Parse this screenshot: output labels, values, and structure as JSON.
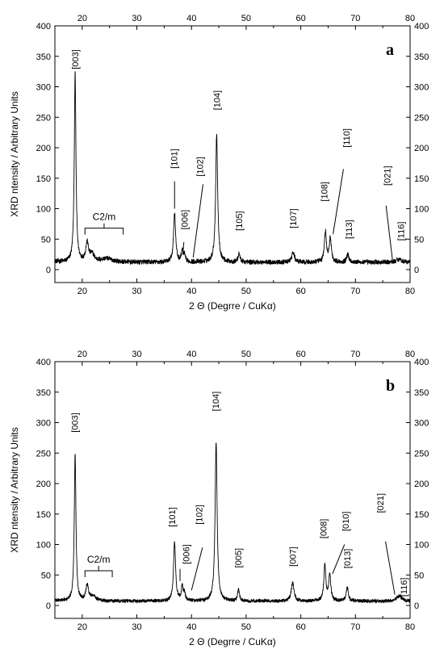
{
  "chart_data": [
    {
      "type": "line",
      "panel_label": "a",
      "xlabel": "2 Θ (Degrre / CuKα)",
      "ylabel": "XRD ntensity / Arbitrary Units",
      "xlim": [
        15,
        80
      ],
      "ylim": [
        -20,
        400
      ],
      "x_ticks": [
        20,
        30,
        40,
        50,
        60,
        70,
        80
      ],
      "y_ticks": [
        0,
        50,
        100,
        150,
        200,
        250,
        300,
        350,
        400
      ],
      "baseline": 12,
      "noise": 4,
      "peaks": [
        {
          "x": 18.7,
          "y": 310,
          "w": 0.18
        },
        {
          "x": 20.9,
          "y": 30,
          "w": 0.3
        },
        {
          "x": 21.8,
          "y": 12,
          "w": 0.5
        },
        {
          "x": 24.5,
          "y": 6,
          "w": 1.2
        },
        {
          "x": 36.9,
          "y": 82,
          "w": 0.22
        },
        {
          "x": 38.3,
          "y": 18,
          "w": 0.2
        },
        {
          "x": 38.7,
          "y": 10,
          "w": 0.2
        },
        {
          "x": 44.6,
          "y": 210,
          "w": 0.22
        },
        {
          "x": 48.7,
          "y": 14,
          "w": 0.22
        },
        {
          "x": 58.6,
          "y": 16,
          "w": 0.3
        },
        {
          "x": 64.5,
          "y": 50,
          "w": 0.22
        },
        {
          "x": 65.4,
          "y": 40,
          "w": 0.22
        },
        {
          "x": 68.6,
          "y": 13,
          "w": 0.25
        },
        {
          "x": 78.0,
          "y": 5,
          "w": 0.6
        }
      ],
      "annotations": [
        {
          "text": "[003]",
          "x": 18.7,
          "y": 345
        },
        {
          "text": "[101]",
          "x": 36.8,
          "y": 182
        },
        {
          "text": "[006]",
          "x": 38.7,
          "y": 82
        },
        {
          "text": "[102]",
          "x": 41.5,
          "y": 169
        },
        {
          "text": "[104]",
          "x": 44.6,
          "y": 278
        },
        {
          "text": "[105]",
          "x": 48.7,
          "y": 80
        },
        {
          "text": "[107]",
          "x": 58.6,
          "y": 84
        },
        {
          "text": "[108]",
          "x": 64.3,
          "y": 128
        },
        {
          "text": "[110]",
          "x": 68.3,
          "y": 216
        },
        {
          "text": "[113]",
          "x": 68.8,
          "y": 66
        },
        {
          "text": "[021]",
          "x": 75.8,
          "y": 154
        },
        {
          "text": "[116]",
          "x": 78.3,
          "y": 63
        }
      ],
      "leader_lines": [
        {
          "x1": 36.9,
          "y1": 145,
          "x2": 36.9,
          "y2": 100
        },
        {
          "x1": 38.6,
          "y1": 45,
          "x2": 38.4,
          "y2": 25
        },
        {
          "x1": 42.1,
          "y1": 140,
          "x2": 40.3,
          "y2": 20
        },
        {
          "x1": 67.8,
          "y1": 165,
          "x2": 65.9,
          "y2": 58
        },
        {
          "x1": 75.6,
          "y1": 105,
          "x2": 76.8,
          "y2": 14
        }
      ],
      "bracket": {
        "label": "C2/m",
        "x_start": 20.5,
        "x_end": 27.5,
        "y": 68
      }
    },
    {
      "type": "line",
      "panel_label": "b",
      "xlabel": "2 Θ (Degrre / CuKα)",
      "ylabel": "XRD ntensity / Arbitrary Units",
      "xlim": [
        15,
        80
      ],
      "ylim": [
        -20,
        400
      ],
      "x_ticks": [
        20,
        30,
        40,
        50,
        60,
        70,
        80
      ],
      "y_ticks": [
        0,
        50,
        100,
        150,
        200,
        250,
        300,
        350,
        400
      ],
      "baseline": 7,
      "noise": 3,
      "peaks": [
        {
          "x": 18.7,
          "y": 243,
          "w": 0.18
        },
        {
          "x": 20.9,
          "y": 25,
          "w": 0.3
        },
        {
          "x": 22.0,
          "y": 8,
          "w": 0.6
        },
        {
          "x": 36.9,
          "y": 97,
          "w": 0.22
        },
        {
          "x": 38.3,
          "y": 22,
          "w": 0.2
        },
        {
          "x": 38.7,
          "y": 12,
          "w": 0.2
        },
        {
          "x": 44.5,
          "y": 262,
          "w": 0.22
        },
        {
          "x": 48.6,
          "y": 18,
          "w": 0.22
        },
        {
          "x": 58.5,
          "y": 30,
          "w": 0.3
        },
        {
          "x": 64.4,
          "y": 58,
          "w": 0.22
        },
        {
          "x": 65.3,
          "y": 43,
          "w": 0.22
        },
        {
          "x": 68.5,
          "y": 22,
          "w": 0.25
        },
        {
          "x": 78.0,
          "y": 8,
          "w": 0.6
        }
      ],
      "annotations": [
        {
          "text": "[003]",
          "x": 18.6,
          "y": 300
        },
        {
          "text": "[101]",
          "x": 36.4,
          "y": 145
        },
        {
          "text": "[006]",
          "x": 39.0,
          "y": 84
        },
        {
          "text": "[102]",
          "x": 41.4,
          "y": 149
        },
        {
          "text": "[104]",
          "x": 44.4,
          "y": 335
        },
        {
          "text": "[005]",
          "x": 48.5,
          "y": 78
        },
        {
          "text": "[007]",
          "x": 58.5,
          "y": 80
        },
        {
          "text": "[008]",
          "x": 64.1,
          "y": 126
        },
        {
          "text": "[010]",
          "x": 68.2,
          "y": 138
        },
        {
          "text": "[013]",
          "x": 68.5,
          "y": 77
        },
        {
          "text": "[021]",
          "x": 74.5,
          "y": 168
        },
        {
          "text": "[116]",
          "x": 78.8,
          "y": 30
        }
      ],
      "leader_lines": [
        {
          "x1": 37.9,
          "y1": 60,
          "x2": 37.9,
          "y2": 40
        },
        {
          "x1": 42.0,
          "y1": 95,
          "x2": 40.0,
          "y2": 25
        },
        {
          "x1": 68.0,
          "y1": 100,
          "x2": 65.8,
          "y2": 52
        },
        {
          "x1": 75.5,
          "y1": 105,
          "x2": 77.2,
          "y2": 18
        }
      ],
      "bracket": {
        "label": "C2/m",
        "x_start": 20.5,
        "x_end": 25.5,
        "y": 57
      }
    }
  ]
}
